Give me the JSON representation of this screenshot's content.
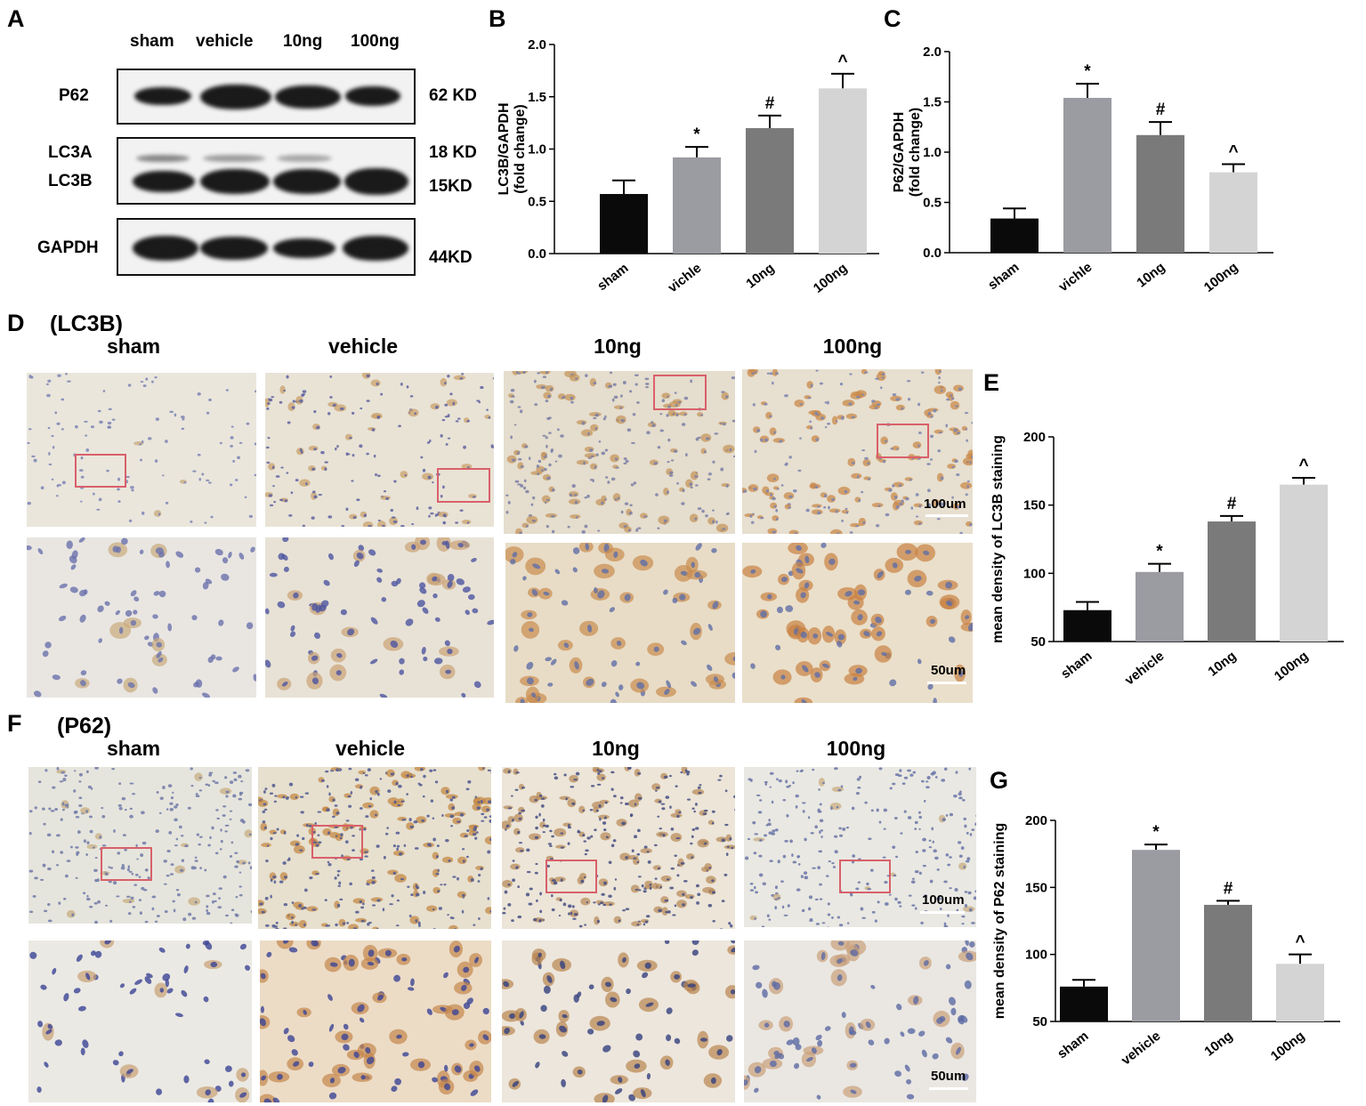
{
  "panels": {
    "A": "A",
    "B": "B",
    "C": "C",
    "D": "D",
    "E": "E",
    "F": "F",
    "G": "G"
  },
  "blot": {
    "lanes": [
      "sham",
      "vehicle",
      "10ng",
      "100ng"
    ],
    "rows": [
      {
        "label": "P62",
        "kd": "62 KD"
      },
      {
        "label": "LC3A",
        "kd": "18 KD"
      },
      {
        "label": "LC3B",
        "kd": "15KD"
      },
      {
        "label": "GAPDH",
        "kd": "44KD"
      }
    ]
  },
  "ihc_lc3b": {
    "title": "(LC3B)",
    "groups": [
      "sham",
      "vehicle",
      "10ng",
      "100ng"
    ],
    "scale_top": "100um",
    "scale_bottom": "50um"
  },
  "ihc_p62": {
    "title": "(P62)",
    "groups": [
      "sham",
      "vehicle",
      "10ng",
      "100ng"
    ],
    "scale_top": "100um",
    "scale_bottom": "50um"
  },
  "colors": {
    "sham": "#0a0a0a",
    "vehicle": "#9b9ba2",
    "dose10": "#7a7a7a",
    "dose100": "#d4d4d4",
    "roi": "#d9606a"
  },
  "chart_data": [
    {
      "id": "B",
      "type": "bar",
      "categories": [
        "sham",
        "vichle",
        "10ng",
        "100ng"
      ],
      "values": [
        0.57,
        0.92,
        1.2,
        1.58
      ],
      "errors": [
        0.13,
        0.1,
        0.12,
        0.14
      ],
      "significance": [
        "",
        "*",
        "#",
        "^"
      ],
      "ylabel": "LC3B/GAPDH",
      "ylabel2": "(fold change)",
      "ylim": [
        0,
        2.0
      ],
      "yticks": [
        "0.0",
        "0.5",
        "1.0",
        "1.5",
        "2.0"
      ]
    },
    {
      "id": "C",
      "type": "bar",
      "categories": [
        "sham",
        "vichle",
        "10ng",
        "100ng"
      ],
      "values": [
        0.34,
        1.54,
        1.17,
        0.8
      ],
      "errors": [
        0.1,
        0.14,
        0.13,
        0.08
      ],
      "significance": [
        "",
        "*",
        "#",
        "^"
      ],
      "ylabel": "P62/GAPDH",
      "ylabel2": "(fold change)",
      "ylim": [
        0,
        2.0
      ],
      "yticks": [
        "0.0",
        "0.5",
        "1.0",
        "1.5",
        "2.0"
      ]
    },
    {
      "id": "E",
      "type": "bar",
      "categories": [
        "sham",
        "vehicle",
        "10ng",
        "100ng"
      ],
      "values": [
        73,
        101,
        138,
        165
      ],
      "errors": [
        6,
        6,
        4,
        5
      ],
      "significance": [
        "",
        "*",
        "#",
        "^"
      ],
      "ylabel": "mean density of LC3B staining",
      "ylim": [
        50,
        200
      ],
      "yticks": [
        "50",
        "100",
        "150",
        "200"
      ]
    },
    {
      "id": "G",
      "type": "bar",
      "categories": [
        "sham",
        "vehicle",
        "10ng",
        "100ng"
      ],
      "values": [
        76,
        178,
        137,
        93
      ],
      "errors": [
        5,
        4,
        3,
        7
      ],
      "significance": [
        "",
        "*",
        "#",
        "^"
      ],
      "ylabel": "mean density of P62 staining",
      "ylim": [
        50,
        200
      ],
      "yticks": [
        "50",
        "100",
        "150",
        "200"
      ]
    }
  ]
}
